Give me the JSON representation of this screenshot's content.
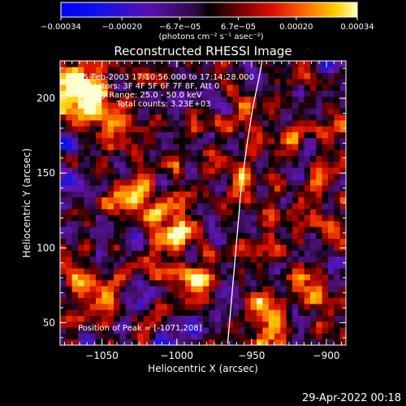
{
  "chart_data": {
    "type": "heatmap",
    "title": "Reconstructed RHESSI Image",
    "xlabel": "Heliocentric X (arcsec)",
    "ylabel": "Heliocentric Y (arcsec)",
    "xlim": [
      -1078,
      -887
    ],
    "ylim": [
      35,
      225
    ],
    "x_ticks": [
      -1050,
      -1000,
      -950,
      -900
    ],
    "x_tick_labels": [
      "−1050",
      "−1000",
      "−950",
      "−900"
    ],
    "y_ticks": [
      50,
      100,
      150,
      200
    ],
    "y_tick_labels": [
      "50",
      "100",
      "150",
      "200"
    ],
    "grid": false,
    "annotations": [
      "15-Feb-2003 17:10:56.000 to 17:14:28.000",
      "Detectors: 3F 4F 5F 6F 7F 8F, Att 0",
      "Energy Range: 25.0 - 50.0 keV",
      "Clean      Total counts: 3.23E+03"
    ],
    "peak_label": "Position of Peak = [-1071,208]",
    "colorbar": {
      "min": -0.00034,
      "max": 0.00034,
      "tick_values": [
        -0.00034,
        -0.0002,
        -6.7e-05,
        6.7e-05,
        0.0002,
        0.00034
      ],
      "tick_labels": [
        "−0.00034",
        "−0.00020",
        "−6.7e−05",
        "6.7e−05",
        "0.00020",
        "0.00034"
      ],
      "unit_label": "(photons cm⁻² s⁻¹ asec⁻²)"
    },
    "limb_curve": {
      "x": [
        -966,
        -963,
        -960,
        -957,
        -953,
        -949,
        -945,
        -943
      ],
      "y": [
        36,
        70,
        105,
        140,
        170,
        195,
        214,
        225
      ]
    },
    "sources": [
      {
        "x": -1071,
        "y": 208,
        "sigma": 11,
        "amp": 1.0
      },
      {
        "x": -1057,
        "y": 194,
        "sigma": 9,
        "amp": 0.55
      },
      {
        "x": -1044,
        "y": 185,
        "sigma": 8,
        "amp": 0.5
      },
      {
        "x": -1028,
        "y": 133,
        "sigma": 8,
        "amp": 0.55
      },
      {
        "x": -1000,
        "y": 110,
        "sigma": 9,
        "amp": 0.8
      },
      {
        "x": -987,
        "y": 76,
        "sigma": 8,
        "amp": 0.75
      },
      {
        "x": -1058,
        "y": 65,
        "sigma": 9,
        "amp": 0.55
      },
      {
        "x": -957,
        "y": 146,
        "sigma": 7,
        "amp": 0.45
      },
      {
        "x": -951,
        "y": 98,
        "sigma": 7,
        "amp": 0.45
      },
      {
        "x": -940,
        "y": 57,
        "sigma": 8,
        "amp": 0.5
      },
      {
        "x": -915,
        "y": 74,
        "sigma": 8,
        "amp": 0.45
      },
      {
        "x": -900,
        "y": 148,
        "sigma": 8,
        "amp": 0.4
      },
      {
        "x": -920,
        "y": 180,
        "sigma": 8,
        "amp": 0.35
      }
    ],
    "grid_cells": 48
  },
  "footer": {
    "date": "29-Apr-2022 00:18"
  }
}
